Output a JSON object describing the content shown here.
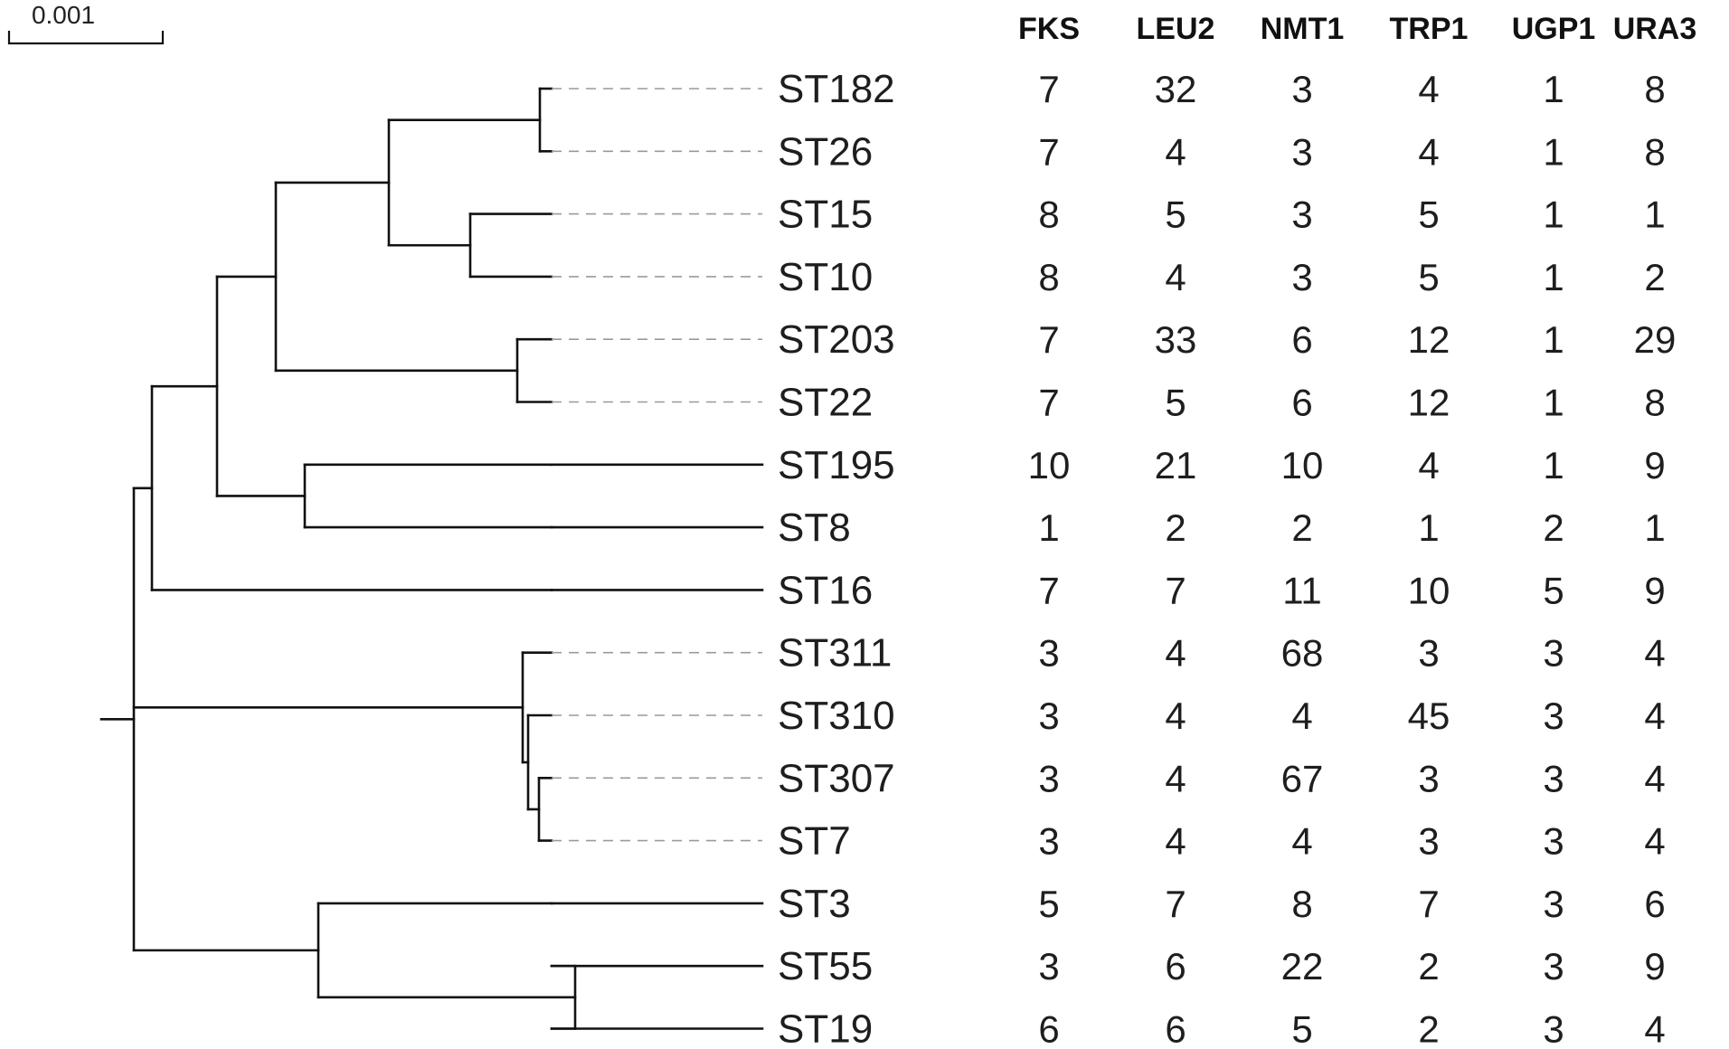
{
  "scale_bar": {
    "label": "0.001"
  },
  "columns": [
    "FKS",
    "LEU2",
    "NMT1",
    "TRP1",
    "UGP1",
    "URA3"
  ],
  "rows": [
    {
      "st": "ST182",
      "alleles": [
        "7",
        "32",
        "3",
        "4",
        "1",
        "8"
      ]
    },
    {
      "st": "ST26",
      "alleles": [
        "7",
        "4",
        "3",
        "4",
        "1",
        "8"
      ]
    },
    {
      "st": "ST15",
      "alleles": [
        "8",
        "5",
        "3",
        "5",
        "1",
        "1"
      ]
    },
    {
      "st": "ST10",
      "alleles": [
        "8",
        "4",
        "3",
        "5",
        "1",
        "2"
      ]
    },
    {
      "st": "ST203",
      "alleles": [
        "7",
        "33",
        "6",
        "12",
        "1",
        "29"
      ]
    },
    {
      "st": "ST22",
      "alleles": [
        "7",
        "5",
        "6",
        "12",
        "1",
        "8"
      ]
    },
    {
      "st": "ST195",
      "alleles": [
        "10",
        "21",
        "10",
        "4",
        "1",
        "9"
      ]
    },
    {
      "st": "ST8",
      "alleles": [
        "1",
        "2",
        "2",
        "1",
        "2",
        "1"
      ]
    },
    {
      "st": "ST16",
      "alleles": [
        "7",
        "7",
        "11",
        "10",
        "5",
        "9"
      ]
    },
    {
      "st": "ST311",
      "alleles": [
        "3",
        "4",
        "68",
        "3",
        "3",
        "4"
      ]
    },
    {
      "st": "ST310",
      "alleles": [
        "3",
        "4",
        "4",
        "45",
        "3",
        "4"
      ]
    },
    {
      "st": "ST307",
      "alleles": [
        "3",
        "4",
        "67",
        "3",
        "3",
        "4"
      ]
    },
    {
      "st": "ST7",
      "alleles": [
        "3",
        "4",
        "4",
        "3",
        "3",
        "4"
      ]
    },
    {
      "st": "ST3",
      "alleles": [
        "5",
        "7",
        "8",
        "7",
        "3",
        "6"
      ]
    },
    {
      "st": "ST55",
      "alleles": [
        "3",
        "6",
        "22",
        "2",
        "3",
        "9"
      ]
    },
    {
      "st": "ST19",
      "alleles": [
        "6",
        "6",
        "5",
        "2",
        "3",
        "4"
      ]
    }
  ],
  "colors": {
    "branch": "#111111",
    "leader": "#9a9a9a",
    "text": "#1e1e1e"
  }
}
